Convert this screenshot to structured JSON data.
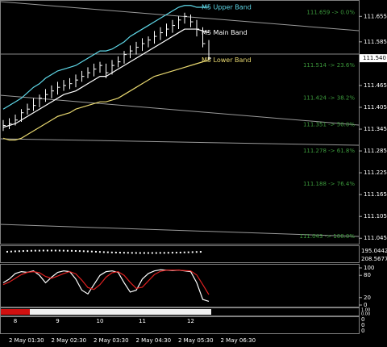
{
  "chart_data": {
    "type": "candlestick",
    "categories": [
      null,
      null,
      "2 May 01:30",
      null,
      null,
      null,
      null,
      null,
      null,
      "2 May 02:30",
      null,
      null,
      null,
      null,
      null,
      null,
      "2 May 03:30",
      null,
      null,
      null,
      null,
      null,
      null,
      "2 May 04:30",
      null,
      null,
      null,
      null,
      null,
      null,
      "2 May 05:30",
      null,
      null,
      null,
      null,
      null,
      null,
      "2 May 06:30"
    ],
    "upper_labels": [
      null,
      null,
      "8",
      null,
      null,
      null,
      null,
      null,
      null,
      "9",
      null,
      null,
      null,
      null,
      null,
      null,
      "10",
      null,
      null,
      null,
      null,
      null,
      null,
      "11",
      null,
      null,
      null,
      null,
      null,
      null,
      null,
      "12",
      null,
      null,
      null,
      null,
      null,
      null
    ],
    "high": [
      111.37,
      111.375,
      111.385,
      111.4,
      111.415,
      111.43,
      111.44,
      111.455,
      111.465,
      111.475,
      111.48,
      111.485,
      111.495,
      111.505,
      111.515,
      111.525,
      111.53,
      111.525,
      111.535,
      111.545,
      111.56,
      111.575,
      111.585,
      111.595,
      111.6,
      111.615,
      111.625,
      111.635,
      111.645,
      111.655,
      111.665,
      111.66,
      111.645,
      111.625,
      111.59,
      null,
      null,
      null
    ],
    "low": [
      111.34,
      111.345,
      111.355,
      111.365,
      111.385,
      111.395,
      111.405,
      111.42,
      111.43,
      111.44,
      111.45,
      111.455,
      111.46,
      111.475,
      111.485,
      111.49,
      111.5,
      111.485,
      111.495,
      111.515,
      111.525,
      111.54,
      111.55,
      111.56,
      111.57,
      111.58,
      111.59,
      111.6,
      111.61,
      111.62,
      111.635,
      111.625,
      111.6,
      111.57,
      111.535,
      null,
      null,
      null
    ],
    "close": [
      111.355,
      111.36,
      111.37,
      111.39,
      111.4,
      111.41,
      111.43,
      111.44,
      111.45,
      111.46,
      111.465,
      111.47,
      111.48,
      111.49,
      111.5,
      111.51,
      111.52,
      111.5,
      111.52,
      111.53,
      111.55,
      111.56,
      111.57,
      111.58,
      111.59,
      111.6,
      111.61,
      111.62,
      111.63,
      111.645,
      111.655,
      111.64,
      111.62,
      111.58,
      111.54,
      null,
      null,
      null
    ],
    "series": [
      {
        "name": "M5 Upper Band",
        "color": "#5fd8e8",
        "values": [
          111.4,
          111.41,
          111.42,
          111.43,
          111.445,
          111.46,
          111.47,
          111.485,
          111.495,
          111.505,
          111.51,
          111.515,
          111.52,
          111.53,
          111.54,
          111.55,
          111.56,
          111.56,
          111.565,
          111.575,
          111.585,
          111.6,
          111.61,
          111.62,
          111.63,
          111.64,
          111.65,
          111.66,
          111.67,
          111.68,
          111.685,
          111.685,
          111.68,
          111.68,
          111.68,
          null,
          null,
          null
        ]
      },
      {
        "name": "M5 Main Band",
        "color": "#ffffff",
        "values": [
          111.35,
          111.355,
          111.36,
          111.37,
          111.38,
          111.39,
          111.4,
          111.41,
          111.42,
          111.43,
          111.44,
          111.445,
          111.45,
          111.46,
          111.47,
          111.48,
          111.49,
          111.49,
          111.5,
          111.51,
          111.52,
          111.53,
          111.54,
          111.55,
          111.56,
          111.57,
          111.58,
          111.59,
          111.6,
          111.61,
          111.62,
          111.62,
          111.62,
          111.615,
          111.61,
          null,
          null,
          null
        ]
      },
      {
        "name": "M5 Lower Band",
        "color": "#e8d870",
        "values": [
          111.32,
          111.315,
          111.315,
          111.32,
          111.33,
          111.34,
          111.35,
          111.36,
          111.37,
          111.38,
          111.385,
          111.39,
          111.4,
          111.405,
          111.41,
          111.415,
          111.42,
          111.42,
          111.425,
          111.43,
          111.44,
          111.45,
          111.46,
          111.47,
          111.48,
          111.49,
          111.495,
          111.5,
          111.505,
          111.51,
          111.515,
          111.52,
          111.525,
          111.53,
          111.535,
          null,
          null,
          null
        ]
      }
    ],
    "ylim": [
      111.03,
      111.7
    ],
    "yticks": [
      111.655,
      111.585,
      111.465,
      111.405,
      111.345,
      111.285,
      111.225,
      111.165,
      111.105,
      111.045
    ],
    "current_price": {
      "value": 111.54,
      "label": "111.540"
    },
    "fib_levels": [
      {
        "value": 111.659,
        "label": "111.659 -> 0.0%"
      },
      {
        "value": 111.514,
        "label": "111.514 -> 23.6%"
      },
      {
        "value": 111.424,
        "label": "111.424 -> 38.2%"
      },
      {
        "value": 111.351,
        "label": "111.351 -> 50.0%"
      },
      {
        "value": 111.278,
        "label": "111.278 -> 61.8%"
      },
      {
        "value": 111.188,
        "label": "111.188 -> 76.4%"
      },
      {
        "value": 111.043,
        "label": "111.043 -> 100.0%"
      }
    ],
    "indicator1_labels": [
      "195.0442",
      "208.5677"
    ],
    "stochastic": {
      "ylim": [
        0,
        100
      ],
      "yticks": [
        100,
        80,
        20,
        0
      ],
      "series": [
        {
          "color": "#ffffff",
          "values": [
            60,
            70,
            85,
            90,
            88,
            92,
            80,
            60,
            75,
            88,
            92,
            90,
            70,
            40,
            30,
            55,
            80,
            90,
            92,
            88,
            60,
            35,
            40,
            70,
            85,
            92,
            95,
            94,
            93,
            94,
            92,
            90,
            60,
            15,
            10,
            null,
            null,
            null
          ]
        },
        {
          "color": "#e02020",
          "values": [
            55,
            62,
            72,
            82,
            88,
            90,
            87,
            77,
            72,
            78,
            85,
            90,
            84,
            67,
            47,
            42,
            55,
            75,
            87,
            90,
            80,
            61,
            45,
            48,
            65,
            82,
            91,
            94,
            94,
            94,
            93,
            92,
            81,
            55,
            28,
            null,
            null,
            null
          ]
        }
      ]
    },
    "indicator3_labels": [
      "1.00",
      "0.00"
    ],
    "indicator4_labels": [
      "0",
      "0",
      "0"
    ]
  }
}
